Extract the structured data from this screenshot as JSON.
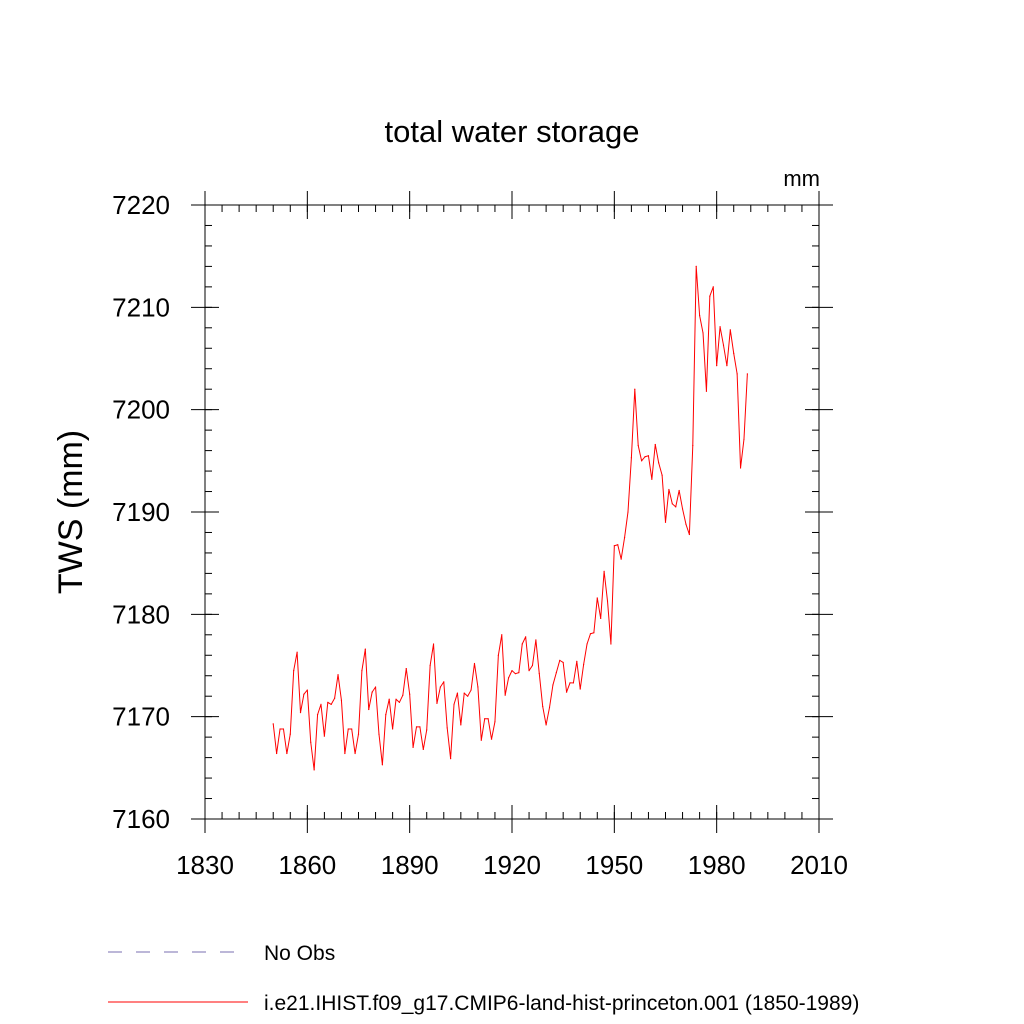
{
  "chart_data": {
    "type": "line",
    "title": "total water storage",
    "units": "mm",
    "ylabel": "TWS  (mm)",
    "xlabel": "",
    "xlim": [
      1830,
      2010
    ],
    "ylim": [
      7160,
      7220
    ],
    "xticks": [
      1830,
      1860,
      1890,
      1920,
      1950,
      1980,
      2010
    ],
    "yticks": [
      7160,
      7170,
      7180,
      7190,
      7200,
      7210,
      7220
    ],
    "colors": {
      "series": "#ff0000",
      "obs": "#7a6fb0"
    },
    "legend_placement": "bottom-left",
    "legend": [
      {
        "label": "No Obs",
        "style": "dashed",
        "color": "#7a6fb0"
      },
      {
        "label": "i.e21.IHIST.f09_g17.CMIP6-land-hist-princeton.001 (1850-1989)",
        "style": "solid",
        "color": "#ff0000"
      }
    ],
    "series": [
      {
        "name": "i.e21.IHIST.f09_g17.CMIP6-land-hist-princeton.001 (1850-1989)",
        "x": [
          1850,
          1851,
          1852,
          1853,
          1854,
          1855,
          1856,
          1857,
          1858,
          1859,
          1860,
          1861,
          1862,
          1863,
          1864,
          1865,
          1866,
          1867,
          1868,
          1869,
          1870,
          1871,
          1872,
          1873,
          1874,
          1875,
          1876,
          1877,
          1878,
          1879,
          1880,
          1881,
          1882,
          1883,
          1884,
          1885,
          1886,
          1887,
          1888,
          1889,
          1890,
          1891,
          1892,
          1893,
          1894,
          1895,
          1896,
          1897,
          1898,
          1899,
          1900,
          1901,
          1902,
          1903,
          1904,
          1905,
          1906,
          1907,
          1908,
          1909,
          1910,
          1911,
          1912,
          1913,
          1914,
          1915,
          1916,
          1917,
          1918,
          1919,
          1920,
          1921,
          1922,
          1923,
          1924,
          1925,
          1926,
          1927,
          1928,
          1929,
          1930,
          1931,
          1932,
          1933,
          1934,
          1935,
          1936,
          1937,
          1938,
          1939,
          1940,
          1941,
          1942,
          1943,
          1944,
          1945,
          1946,
          1947,
          1948,
          1949,
          1950,
          1951,
          1952,
          1953,
          1954,
          1955,
          1956,
          1957,
          1958,
          1959,
          1960,
          1961,
          1962,
          1963,
          1964,
          1965,
          1966,
          1967,
          1968,
          1969,
          1970,
          1971,
          1972,
          1973,
          1974,
          1975,
          1976,
          1977,
          1978,
          1979,
          1980,
          1981,
          1982,
          1983,
          1984,
          1985,
          1986,
          1987,
          1988,
          1989
        ],
        "values": [
          7169.3,
          7166.4,
          7168.8,
          7168.8,
          7166.4,
          7168.3,
          7174.5,
          7176.3,
          7170.4,
          7172.2,
          7172.6,
          7167.5,
          7164.8,
          7170.2,
          7171.2,
          7168.1,
          7171.4,
          7171.2,
          7171.8,
          7174.1,
          7171.6,
          7166.4,
          7168.8,
          7168.8,
          7166.4,
          7168.3,
          7174.5,
          7176.6,
          7170.7,
          7172.4,
          7172.9,
          7168.3,
          7165.3,
          7170.2,
          7171.7,
          7168.8,
          7171.7,
          7171.4,
          7172.1,
          7174.7,
          7172.2,
          7167.0,
          7169.0,
          7169.0,
          7166.8,
          7168.7,
          7175.0,
          7177.1,
          7171.3,
          7172.9,
          7173.4,
          7168.9,
          7165.9,
          7171.2,
          7172.3,
          7169.2,
          7172.3,
          7172.0,
          7172.6,
          7175.2,
          7172.9,
          7167.7,
          7169.8,
          7169.8,
          7167.8,
          7169.5,
          7176.0,
          7178.0,
          7172.1,
          7173.8,
          7174.5,
          7174.2,
          7174.3,
          7177.1,
          7177.8,
          7174.5,
          7175.0,
          7177.5,
          7174.2,
          7171.0,
          7169.2,
          7170.9,
          7173.1,
          7174.3,
          7175.5,
          7175.3,
          7172.4,
          7173.3,
          7173.3,
          7175.4,
          7172.7,
          7175.1,
          7177.1,
          7178.1,
          7178.2,
          7181.6,
          7179.6,
          7184.2,
          7181.3,
          7177.1,
          7186.7,
          7186.8,
          7185.4,
          7187.5,
          7190.0,
          7195.3,
          7202.0,
          7196.5,
          7195.0,
          7195.4,
          7195.5,
          7193.2,
          7196.6,
          7194.8,
          7193.6,
          7189.0,
          7192.2,
          7190.8,
          7190.5,
          7192.1,
          7190.3,
          7188.8,
          7187.8,
          7196.5,
          7214.0,
          7209.2,
          7207.5,
          7201.8,
          7211.1,
          7212.0,
          7204.3,
          7208.1,
          7206.3,
          7204.3,
          7207.8,
          7205.5,
          7203.5,
          7194.3,
          7197.1,
          7203.5
        ]
      }
    ]
  }
}
